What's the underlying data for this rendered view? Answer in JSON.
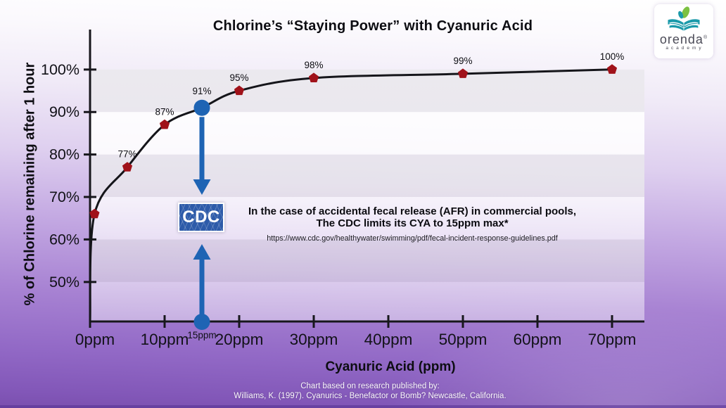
{
  "title": "Chlorine’s “Staying Power” with Cyanuric Acid",
  "logo": {
    "brand": "orenda",
    "trademark": "®",
    "sub": "academy",
    "icon": "orenda-book-leaf-icon",
    "teal": "#1b9aaa",
    "green": "#7cc142"
  },
  "chart_data": {
    "type": "line",
    "title": "Chlorine’s “Staying Power” with Cyanuric Acid",
    "xlabel": "Cyanuric Acid (ppm)",
    "ylabel": "% of Chlorine remaining after 1 hour",
    "xlim": [
      0,
      74.5
    ],
    "ylim": [
      40.7,
      110
    ],
    "grid": "alternating-horizontal-bands",
    "legend": "none",
    "x_ticks": [
      {
        "value": 0,
        "label": "0ppm"
      },
      {
        "value": 10,
        "label": "10ppm"
      },
      {
        "value": 20,
        "label": "20ppm"
      },
      {
        "value": 30,
        "label": "30ppm"
      },
      {
        "value": 40,
        "label": "40ppm"
      },
      {
        "value": 50,
        "label": "50ppm"
      },
      {
        "value": 60,
        "label": "60ppm"
      },
      {
        "value": 70,
        "label": "70ppm"
      }
    ],
    "x_highlight_tick": {
      "value": 15,
      "label": "15ppm"
    },
    "y_ticks": [
      {
        "value": 100,
        "label": "100%"
      },
      {
        "value": 90,
        "label": "90%"
      },
      {
        "value": 80,
        "label": "80%"
      },
      {
        "value": 70,
        "label": "70%"
      },
      {
        "value": 60,
        "label": "60%"
      },
      {
        "value": 50,
        "label": "50%"
      }
    ],
    "series": [
      {
        "name": "% of chlorine remaining after 1 hour",
        "points": [
          {
            "x": 0,
            "y": 40.7,
            "label": "",
            "marker": "none"
          },
          {
            "x": 0.6,
            "y": 66,
            "label": "",
            "marker": "pentagon"
          },
          {
            "x": 5,
            "y": 77,
            "label": "77%",
            "marker": "pentagon"
          },
          {
            "x": 10,
            "y": 87,
            "label": "87%",
            "marker": "pentagon"
          },
          {
            "x": 15,
            "y": 91,
            "label": "91%",
            "marker": "highlight-circle"
          },
          {
            "x": 20,
            "y": 95,
            "label": "95%",
            "marker": "pentagon"
          },
          {
            "x": 30,
            "y": 98,
            "label": "98%",
            "marker": "pentagon"
          },
          {
            "x": 50,
            "y": 99,
            "label": "99%",
            "marker": "pentagon"
          },
          {
            "x": 70,
            "y": 100,
            "label": "100%",
            "marker": "pentagon"
          }
        ]
      }
    ]
  },
  "annotation": {
    "cdc_logo_text": "CDC",
    "line1": "In the case of accidental fecal release (AFR) in commercial pools,",
    "line2": "The CDC limits its CYA to 15ppm max*",
    "url": "https://www.cdc.gov/healthywater/swimming/pdf/fecal-incident-response-guidelines.pdf"
  },
  "footer": {
    "line1": "Chart based on research published by:",
    "line2": "Williams, K. (1997). Cyanurics - Benefactor or Bomb? Newcastle, California."
  },
  "colors": {
    "line": "#15151a",
    "marker": "#a0121a",
    "highlight": "#1e64b4",
    "cdc_box": "#2d5ba9",
    "band_gray": "rgba(108,96,134,0.13)",
    "bg_top": "#ffffff",
    "bg_bottom": "#7a4fae",
    "axis": "#17171c"
  }
}
